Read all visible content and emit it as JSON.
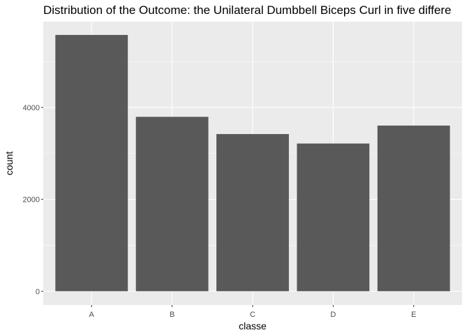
{
  "chart_data": {
    "type": "bar",
    "title": "Distribution of the Outcome: the Unilateral Dumbbell Biceps Curl in five differe",
    "xlabel": "classe",
    "ylabel": "count",
    "categories": [
      "A",
      "B",
      "C",
      "D",
      "E"
    ],
    "values": [
      5580,
      3797,
      3422,
      3216,
      3607
    ],
    "ylim": [
      -300,
      5870
    ],
    "yticks": [
      0,
      2000,
      4000
    ],
    "grid": true,
    "colors": {
      "panel_background": "#ebebeb",
      "grid_major": "#ffffff",
      "bar_fill": "#595959",
      "tick_text": "#4d4d4d"
    }
  }
}
